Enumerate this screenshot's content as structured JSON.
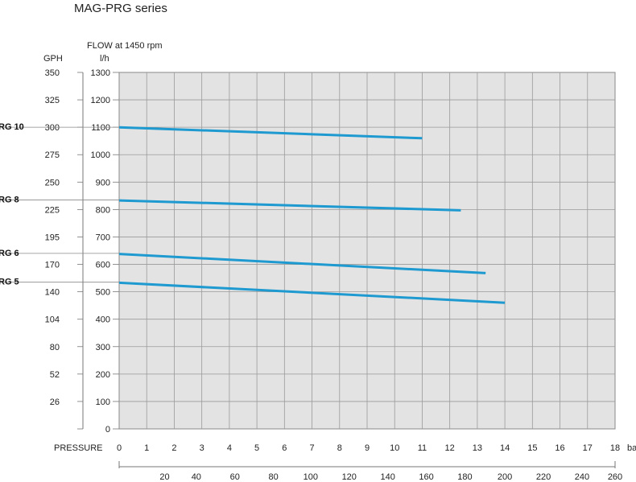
{
  "chart_data": {
    "type": "line",
    "title": "MAG-PRG series",
    "flow_label": "FLOW at 1450 rpm",
    "gph_label": "GPH",
    "lh_label": "l/h",
    "xlabel": "PRESSURE",
    "x_unit": "ba",
    "xlim": [
      0,
      18
    ],
    "ylim": [
      0,
      1300
    ],
    "grid": true,
    "x_ticks": [
      0,
      1,
      2,
      3,
      4,
      5,
      6,
      7,
      8,
      9,
      10,
      11,
      12,
      13,
      14,
      15,
      16,
      17,
      18
    ],
    "y_ticks": [
      0,
      100,
      200,
      300,
      400,
      500,
      600,
      700,
      800,
      900,
      1000,
      1100,
      1200,
      1300
    ],
    "gph_ticks": [
      {
        "label": "350",
        "lh": 1300
      },
      {
        "label": "325",
        "lh": 1200
      },
      {
        "label": "300",
        "lh": 1100
      },
      {
        "label": "275",
        "lh": 1000
      },
      {
        "label": "250",
        "lh": 900
      },
      {
        "label": "225",
        "lh": 800
      },
      {
        "label": "195",
        "lh": 700
      },
      {
        "label": "170",
        "lh": 600
      },
      {
        "label": "140",
        "lh": 500
      },
      {
        "label": "104",
        "lh": 400
      },
      {
        "label": "80",
        "lh": 300
      },
      {
        "label": "52",
        "lh": 200
      },
      {
        "label": "26",
        "lh": 100
      }
    ],
    "psi_ticks": [
      {
        "label": "20",
        "bar": 1.65
      },
      {
        "label": "40",
        "bar": 2.8
      },
      {
        "label": "60",
        "bar": 4.2
      },
      {
        "label": "80",
        "bar": 5.6
      },
      {
        "label": "100",
        "bar": 6.95
      },
      {
        "label": "120",
        "bar": 8.35
      },
      {
        "label": "140",
        "bar": 9.75
      },
      {
        "label": "160",
        "bar": 11.15
      },
      {
        "label": "180",
        "bar": 12.55
      },
      {
        "label": "200",
        "bar": 14.0
      },
      {
        "label": "220",
        "bar": 15.4
      },
      {
        "label": "240",
        "bar": 16.8
      },
      {
        "label": "260",
        "bar": 18.0
      }
    ],
    "series_color": "#1e9ad0",
    "series": [
      {
        "name": "RG 10",
        "label_lh": 1100,
        "x": [
          0,
          11
        ],
        "y": [
          1100,
          1060
        ]
      },
      {
        "name": "RG 8",
        "label_lh": 835,
        "x": [
          0,
          12.4
        ],
        "y": [
          833,
          797
        ]
      },
      {
        "name": "RG 6",
        "label_lh": 640,
        "x": [
          0,
          13.3
        ],
        "y": [
          638,
          568
        ]
      },
      {
        "name": "RG 5",
        "label_lh": 535,
        "x": [
          0,
          14
        ],
        "y": [
          533,
          460
        ]
      }
    ]
  }
}
